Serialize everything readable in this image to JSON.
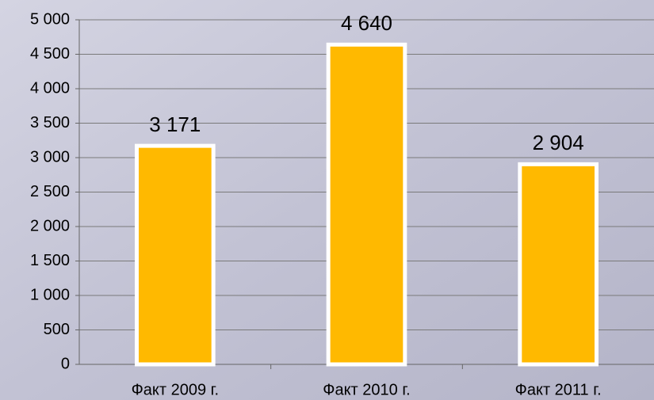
{
  "chart_data": {
    "type": "bar",
    "categories": [
      "Факт 2009 г.",
      "Факт 2010 г.",
      "Факт 2011 г."
    ],
    "values": [
      3171,
      4640,
      2904
    ],
    "value_labels": [
      "3 171",
      "4 640",
      "2 904"
    ],
    "color": "#ffb900",
    "ylim": [
      0,
      5000
    ],
    "yticks": [
      0,
      500,
      {
        "value": 1000,
        "label": "1 000"
      },
      {
        "value": 1500,
        "label": "1 500"
      },
      {
        "value": 2000,
        "label": "2 000"
      },
      {
        "value": 2500,
        "label": "2 500"
      },
      {
        "value": 3000,
        "label": "3 000"
      },
      {
        "value": 3500,
        "label": "3 500"
      },
      {
        "value": 4000,
        "label": "4 000"
      },
      {
        "value": 4500,
        "label": "4 500"
      },
      {
        "value": 5000,
        "label": "5 000"
      }
    ],
    "grid": true
  }
}
